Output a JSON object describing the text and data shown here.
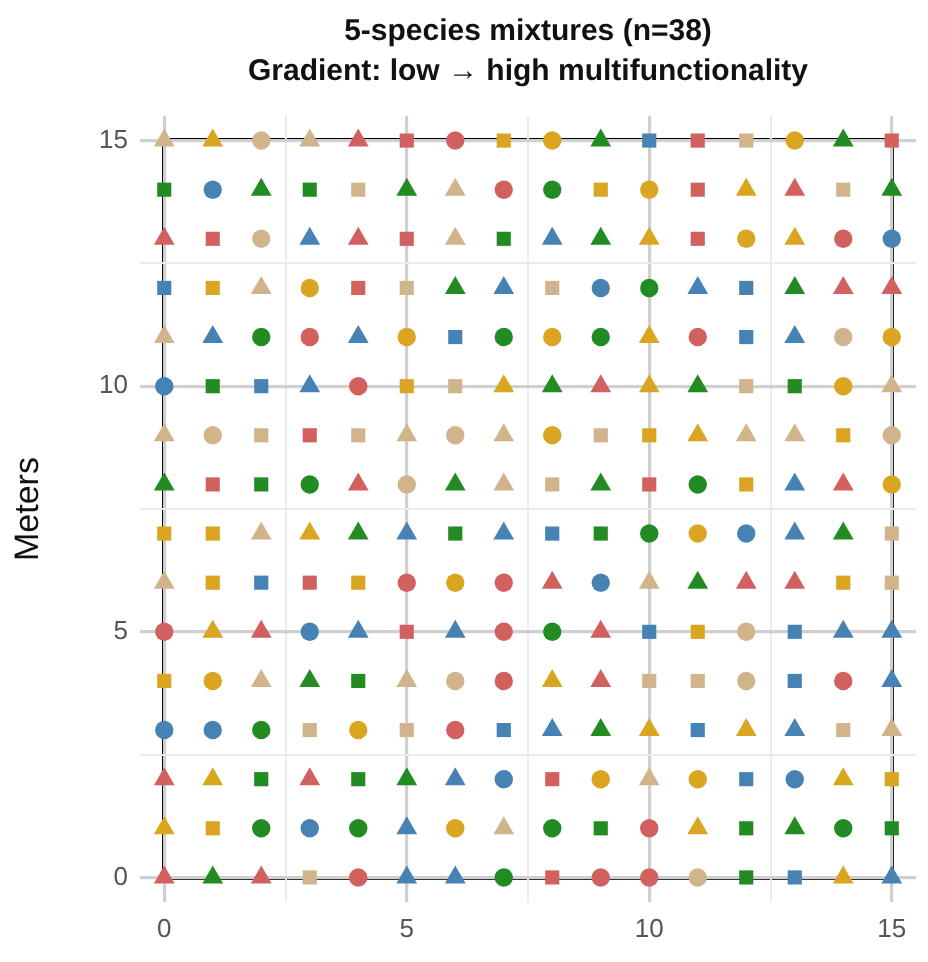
{
  "chart_data": {
    "type": "scatter",
    "title": "5-species mixtures (n=38)",
    "subtitle": "Gradient: low → high multifunctionality",
    "ylabel": "Meters",
    "xlim": [
      -0.5,
      15.5
    ],
    "ylim": [
      -0.5,
      15.5
    ],
    "xticks": [
      0,
      {
        "value": 2.5,
        "label": null
      },
      5,
      {
        "value": 7.5,
        "label": null
      },
      10,
      {
        "value": 12.5,
        "label": null
      },
      15
    ],
    "yticks": [
      0,
      {
        "value": 2.5,
        "label": null
      },
      5,
      {
        "value": 7.5,
        "label": null
      },
      10,
      {
        "value": 12.5,
        "label": null
      },
      15
    ],
    "grid": true,
    "legend": false,
    "series": [
      {
        "color": "#d1605e",
        "marker": "circle",
        "x": [
          6,
          7,
          14,
          3,
          11,
          4,
          5,
          7,
          0,
          7,
          7,
          14,
          6,
          10,
          4,
          9,
          10
        ],
        "values": [
          15,
          14,
          13,
          11,
          11,
          10,
          6,
          6,
          5,
          5,
          4,
          4,
          3,
          1,
          0,
          0,
          0
        ]
      },
      {
        "color": "#d1605e",
        "marker": "triangle",
        "x": [
          4,
          13,
          0,
          4,
          14,
          15,
          9,
          4,
          14,
          8,
          12,
          13,
          2,
          9,
          9,
          0,
          3,
          0,
          2
        ],
        "values": [
          15,
          14,
          13,
          13,
          12,
          12,
          10,
          8,
          8,
          6,
          6,
          6,
          5,
          5,
          4,
          2,
          2,
          0,
          0
        ]
      },
      {
        "color": "#d1605e",
        "marker": "square",
        "x": [
          5,
          11,
          15,
          11,
          1,
          5,
          11,
          4,
          3,
          1,
          10,
          3,
          5,
          8,
          8
        ],
        "values": [
          15,
          15,
          15,
          14,
          13,
          13,
          13,
          12,
          9,
          8,
          8,
          6,
          5,
          2,
          0
        ]
      },
      {
        "color": "#4682b4",
        "marker": "circle",
        "x": [
          1,
          15,
          9,
          0,
          12,
          9,
          3,
          0,
          1,
          7,
          13,
          3
        ],
        "values": [
          14,
          13,
          12,
          10,
          7,
          6,
          5,
          3,
          3,
          2,
          2,
          1
        ]
      },
      {
        "color": "#4682b4",
        "marker": "triangle",
        "x": [
          3,
          8,
          7,
          11,
          1,
          4,
          13,
          3,
          13,
          5,
          7,
          13,
          4,
          6,
          14,
          15,
          15,
          8,
          13,
          6,
          5,
          5,
          6,
          15
        ],
        "values": [
          13,
          13,
          12,
          12,
          11,
          11,
          11,
          10,
          8,
          7,
          7,
          7,
          5,
          5,
          5,
          5,
          4,
          3,
          3,
          2,
          1,
          0,
          0,
          0
        ]
      },
      {
        "color": "#4682b4",
        "marker": "square",
        "x": [
          10,
          0,
          12,
          6,
          12,
          2,
          8,
          2,
          10,
          13,
          13,
          7,
          11,
          12,
          13
        ],
        "values": [
          15,
          12,
          12,
          11,
          11,
          10,
          7,
          6,
          5,
          5,
          4,
          3,
          3,
          2,
          0
        ]
      },
      {
        "color": "#daa520",
        "marker": "circle",
        "x": [
          8,
          13,
          10,
          12,
          3,
          5,
          8,
          15,
          14,
          8,
          15,
          11,
          6,
          1,
          4,
          9,
          11,
          6
        ],
        "values": [
          15,
          15,
          14,
          13,
          12,
          11,
          11,
          11,
          10,
          9,
          8,
          7,
          6,
          4,
          3,
          2,
          2,
          1
        ]
      },
      {
        "color": "#daa520",
        "marker": "triangle",
        "x": [
          1,
          12,
          10,
          13,
          10,
          7,
          10,
          11,
          3,
          1,
          8,
          10,
          12,
          1,
          14,
          0,
          11,
          14
        ],
        "values": [
          15,
          14,
          13,
          13,
          11,
          10,
          10,
          9,
          7,
          5,
          4,
          3,
          3,
          2,
          2,
          1,
          1,
          0
        ]
      },
      {
        "color": "#daa520",
        "marker": "square",
        "x": [
          7,
          9,
          1,
          5,
          10,
          14,
          12,
          0,
          1,
          1,
          4,
          14,
          11,
          0,
          15,
          1
        ],
        "values": [
          15,
          14,
          12,
          10,
          9,
          9,
          8,
          7,
          7,
          6,
          6,
          6,
          5,
          4,
          2,
          1
        ]
      },
      {
        "color": "#d2b48c",
        "marker": "circle",
        "x": [
          2,
          2,
          14,
          1,
          6,
          15,
          5,
          12,
          6,
          12,
          11
        ],
        "values": [
          15,
          13,
          11,
          9,
          9,
          9,
          8,
          5,
          4,
          4,
          0
        ]
      },
      {
        "color": "#d2b48c",
        "marker": "triangle",
        "x": [
          0,
          3,
          6,
          6,
          2,
          0,
          15,
          0,
          5,
          7,
          12,
          13,
          7,
          2,
          0,
          10,
          2,
          5,
          15,
          10,
          7
        ],
        "values": [
          15,
          15,
          14,
          13,
          12,
          11,
          10,
          9,
          9,
          9,
          9,
          9,
          8,
          7,
          6,
          6,
          4,
          4,
          3,
          2,
          1
        ]
      },
      {
        "color": "#d2b48c",
        "marker": "square",
        "x": [
          12,
          4,
          14,
          5,
          8,
          6,
          12,
          2,
          4,
          9,
          8,
          15,
          15,
          10,
          11,
          3,
          5,
          14,
          3
        ],
        "values": [
          15,
          14,
          14,
          12,
          12,
          10,
          10,
          9,
          9,
          9,
          8,
          7,
          6,
          4,
          4,
          3,
          3,
          3,
          0
        ]
      },
      {
        "color": "#228b22",
        "marker": "circle",
        "x": [
          8,
          10,
          2,
          7,
          9,
          3,
          11,
          10,
          8,
          2,
          2,
          4,
          8,
          14,
          7
        ],
        "values": [
          14,
          12,
          11,
          11,
          11,
          8,
          8,
          7,
          5,
          3,
          1,
          1,
          1,
          1,
          0
        ]
      },
      {
        "color": "#228b22",
        "marker": "triangle",
        "x": [
          9,
          14,
          2,
          5,
          15,
          9,
          6,
          13,
          8,
          11,
          0,
          6,
          9,
          4,
          14,
          11,
          3,
          9,
          5,
          13,
          1
        ],
        "values": [
          15,
          15,
          14,
          14,
          14,
          13,
          12,
          12,
          10,
          10,
          8,
          8,
          8,
          7,
          7,
          6,
          4,
          3,
          2,
          1,
          0
        ]
      },
      {
        "color": "#228b22",
        "marker": "square",
        "x": [
          0,
          3,
          7,
          1,
          13,
          2,
          6,
          9,
          4,
          2,
          4,
          9,
          12,
          15,
          12
        ],
        "values": [
          14,
          14,
          13,
          10,
          10,
          8,
          7,
          7,
          4,
          2,
          2,
          1,
          1,
          1,
          0
        ]
      }
    ]
  }
}
